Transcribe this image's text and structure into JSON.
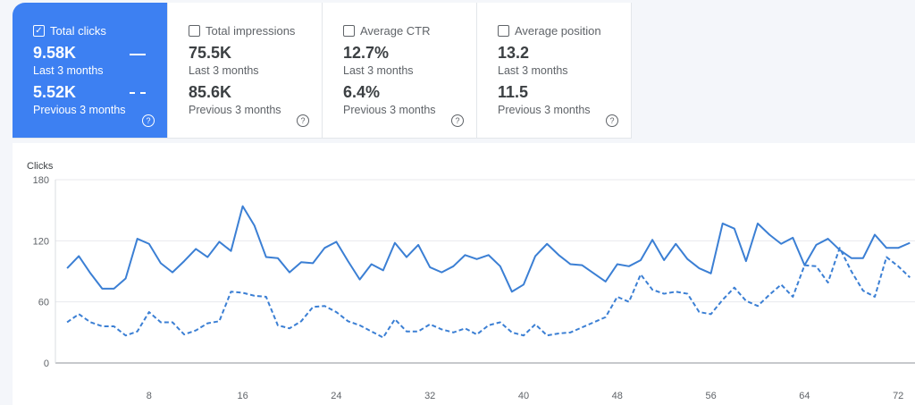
{
  "metrics": [
    {
      "label": "Total clicks",
      "selected": true,
      "current": "9.58K",
      "current_label": "Last 3 months",
      "previous": "5.52K",
      "previous_label": "Previous 3 months"
    },
    {
      "label": "Total impressions",
      "selected": false,
      "current": "75.5K",
      "current_label": "Last 3 months",
      "previous": "85.6K",
      "previous_label": "Previous 3 months"
    },
    {
      "label": "Average CTR",
      "selected": false,
      "current": "12.7%",
      "current_label": "Last 3 months",
      "previous": "6.4%",
      "previous_label": "Previous 3 months"
    },
    {
      "label": "Average position",
      "selected": false,
      "current": "13.2",
      "current_label": "Last 3 months",
      "previous": "11.5",
      "previous_label": "Previous 3 months"
    }
  ],
  "help_glyph": "?",
  "check_glyph": "✓",
  "colors": {
    "accent": "#3d80f2",
    "line": "#3b7fd4"
  },
  "chart_data": {
    "type": "line",
    "ylabel": "Clicks",
    "ylim": [
      0,
      180
    ],
    "yticks": [
      0,
      60,
      120,
      180
    ],
    "xlim": [
      0,
      74
    ],
    "xticks": [
      8,
      16,
      24,
      32,
      40,
      48,
      56,
      64,
      72
    ],
    "grid": true,
    "series": [
      {
        "name": "Last 3 months",
        "style": "solid",
        "values": [
          93,
          105,
          88,
          73,
          73,
          83,
          122,
          117,
          98,
          89,
          100,
          112,
          104,
          119,
          110,
          154,
          135,
          104,
          103,
          89,
          99,
          98,
          113,
          119,
          100,
          82,
          97,
          91,
          118,
          104,
          116,
          94,
          89,
          95,
          106,
          102,
          106,
          95,
          70,
          77,
          105,
          117,
          106,
          97,
          96,
          88,
          80,
          97,
          95,
          101,
          121,
          101,
          117,
          102,
          93,
          88,
          137,
          132,
          100,
          137,
          126,
          117,
          123,
          96,
          116,
          122,
          111,
          103,
          103,
          126,
          113,
          113,
          118
        ]
      },
      {
        "name": "Previous 3 months",
        "style": "dashed",
        "values": [
          40,
          48,
          40,
          36,
          36,
          27,
          31,
          50,
          40,
          40,
          28,
          32,
          39,
          41,
          70,
          69,
          66,
          65,
          37,
          34,
          41,
          55,
          56,
          50,
          41,
          37,
          31,
          25,
          43,
          31,
          31,
          38,
          33,
          30,
          34,
          28,
          37,
          40,
          30,
          27,
          38,
          27,
          29,
          30,
          35,
          40,
          45,
          65,
          60,
          87,
          72,
          68,
          70,
          68,
          50,
          48,
          62,
          74,
          61,
          56,
          67,
          77,
          65,
          96,
          95,
          79,
          113,
          90,
          71,
          65,
          104,
          95,
          84
        ]
      }
    ]
  }
}
